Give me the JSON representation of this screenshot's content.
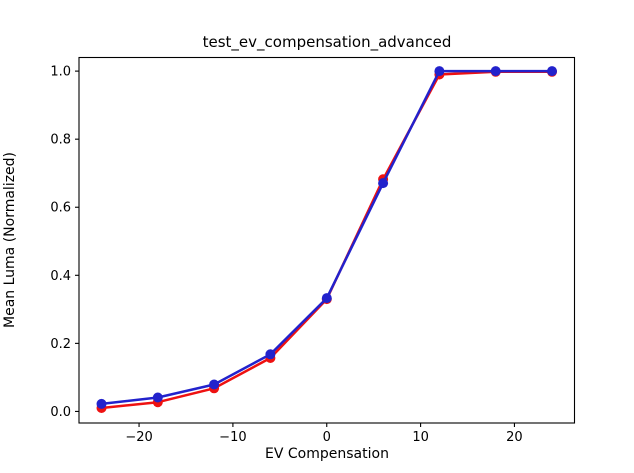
{
  "figure": {
    "background": "#ffffff",
    "plot_background": "#ffffff",
    "spine_color": "#000000",
    "text_color": "#000000"
  },
  "chart_data": {
    "type": "line",
    "title": "test_ev_compensation_advanced",
    "xlabel": "EV Compensation",
    "ylabel": "Mean Luma (Normalized)",
    "x": [
      -24,
      -18,
      -12,
      -6,
      0,
      6,
      12,
      18,
      24
    ],
    "series": [
      {
        "name": "red",
        "color": "#ee1111",
        "marker": "o",
        "values": [
          0.01,
          0.027,
          0.068,
          0.157,
          0.33,
          0.682,
          0.99,
          0.998,
          0.998
        ]
      },
      {
        "name": "blue",
        "color": "#2222cc",
        "marker": "o",
        "values": [
          0.022,
          0.041,
          0.079,
          0.168,
          0.333,
          0.671,
          1.0,
          1.0,
          1.0
        ]
      }
    ],
    "xlim": [
      -26.4,
      26.4
    ],
    "ylim": [
      -0.034,
      1.04
    ],
    "xticks": {
      "values": [
        -20,
        -10,
        0,
        10,
        20
      ],
      "labels": [
        "−20",
        "−10",
        "0",
        "10",
        "20"
      ]
    },
    "yticks": {
      "values": [
        0.0,
        0.2,
        0.4,
        0.6,
        0.8,
        1.0
      ],
      "labels": [
        "0.0",
        "0.2",
        "0.4",
        "0.6",
        "0.8",
        "1.0"
      ]
    },
    "grid": false,
    "legend": "none"
  }
}
